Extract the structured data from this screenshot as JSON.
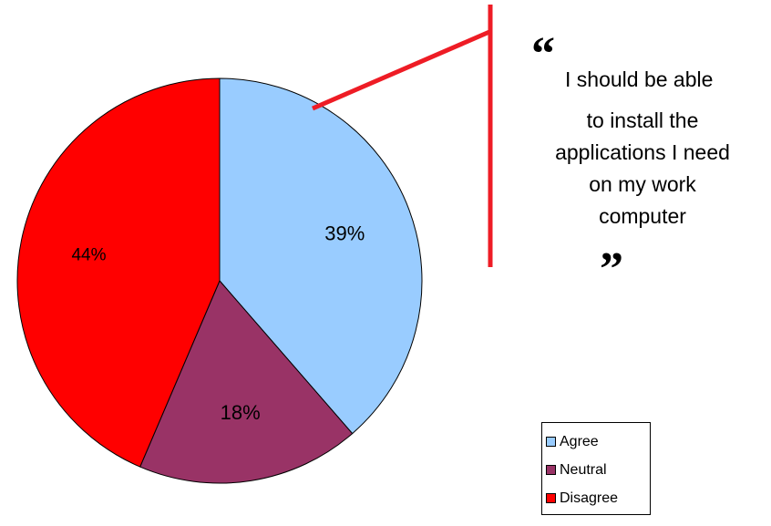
{
  "chart_data": {
    "type": "pie",
    "title": "",
    "slices": [
      {
        "label": "Agree",
        "value": 39,
        "value_label": "39%",
        "color": "#99CCFF"
      },
      {
        "label": "Neutral",
        "value": 18,
        "value_label": "18%",
        "color": "#993366"
      },
      {
        "label": "Disagree",
        "value": 44,
        "value_label": "44%",
        "color": "#FF0000"
      }
    ],
    "start_angle": "12 o'clock",
    "direction": "clockwise",
    "legend_position": "bottom-right"
  },
  "quote": {
    "open_mark": "“",
    "close_mark": "”",
    "lines": [
      "I should be able",
      "to install the",
      "applications I need",
      "on my work",
      "computer"
    ]
  },
  "callout_color": "#EE1C25"
}
